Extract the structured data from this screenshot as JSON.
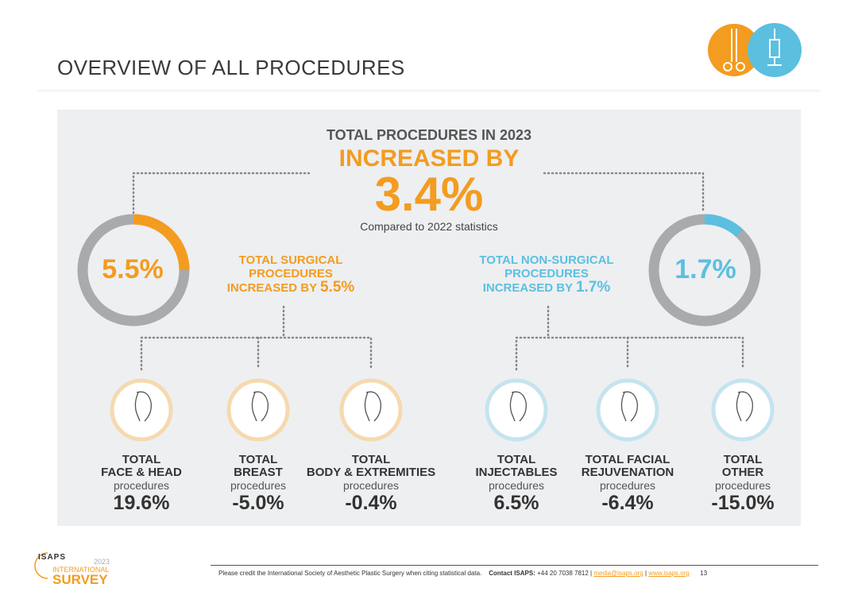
{
  "header": {
    "title": "OVERVIEW OF ALL PROCEDURES",
    "icons": [
      "scissors-icon",
      "syringe-icon"
    ]
  },
  "colors": {
    "orange": "#f39c1f",
    "blue": "#5bbfe0",
    "ring_gray": "#a9aaab",
    "panel": "#eeeff1"
  },
  "summary": {
    "line1": "TOTAL PROCEDURES IN 2023",
    "line2": "INCREASED BY",
    "value": "3.4%",
    "note": "Compared to 2022 statistics"
  },
  "surgical": {
    "ring_label": "5.5%",
    "ring_fraction": 0.25,
    "text1": "TOTAL SURGICAL",
    "text2": "PROCEDURES",
    "text3": "INCREASED BY ",
    "text3_value": "5.5%"
  },
  "nonsurgical": {
    "ring_label": "1.7%",
    "ring_fraction": 0.12,
    "text1": "TOTAL NON-SURGICAL",
    "text2": "PROCEDURES",
    "text3": "INCREASED BY ",
    "text3_value": "1.7%"
  },
  "categories": [
    {
      "line1": "TOTAL",
      "line2": "FACE & HEAD",
      "proc": "procedures",
      "value": "19.6%",
      "icon": "face-profile-icon"
    },
    {
      "line1": "TOTAL",
      "line2": "BREAST",
      "proc": "procedures",
      "value": "-5.0%",
      "icon": "breast-icon"
    },
    {
      "line1": "TOTAL",
      "line2": "BODY & EXTREMITIES",
      "proc": "procedures",
      "value": "-0.4%",
      "icon": "body-icon"
    },
    {
      "line1": "TOTAL",
      "line2": "INJECTABLES",
      "proc": "procedures",
      "value": "6.5%",
      "icon": "syringe-icon"
    },
    {
      "line1": "TOTAL FACIAL",
      "line2": "REJUVENATION",
      "proc": "procedures",
      "value": "-6.4%",
      "icon": "face-towel-icon"
    },
    {
      "line1": "TOTAL",
      "line2": "OTHER",
      "proc": "procedures",
      "value": "-15.0%",
      "icon": "face-profile-icon"
    }
  ],
  "footer": {
    "credit": "Please credit the International Society of Aesthetic Plastic Surgery when citing statistical data.",
    "contact_label": "Contact ISAPS:",
    "phone": " +44 20 7038 7812 | ",
    "email": "media@isaps.org",
    "sep": " | ",
    "web": "www.isaps.org",
    "page": "13"
  },
  "logo": {
    "name": "ISAPS",
    "year": "2023",
    "line1": "INTERNATIONAL",
    "line2": "SURVEY"
  }
}
